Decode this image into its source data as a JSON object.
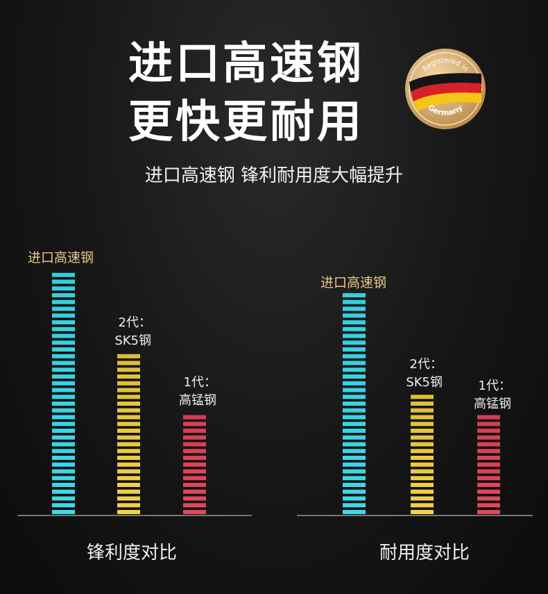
{
  "header": {
    "title_line1": "进口高速钢",
    "title_line2": "更快更耐用",
    "subtitle": "进口高速钢 锋利耐用度大幅提升",
    "badge": {
      "text_top": "Registered in",
      "text_bottom": "Germany",
      "flag_colors": [
        "#1a1a1a",
        "#d8202a",
        "#f5c518"
      ]
    }
  },
  "chart_data": [
    {
      "type": "bar",
      "title": "锋利度对比",
      "categories": [
        "进口高速钢",
        "2代：SK5钢",
        "1代：高锰钢"
      ],
      "label_lines": [
        [
          "进口高速钢"
        ],
        [
          "2代：",
          "SK5钢"
        ],
        [
          "1代：",
          "高锰钢"
        ]
      ],
      "values": [
        36,
        24,
        15
      ],
      "colors": [
        "#3fd8e8",
        "#f3d24a",
        "#e0485e"
      ],
      "ylim": [
        0,
        36
      ],
      "grid": false
    },
    {
      "type": "bar",
      "title": "耐用度对比",
      "categories": [
        "进口高速钢",
        "2代：SK5钢",
        "1代：高锰钢"
      ],
      "label_lines": [
        [
          "进口高速钢"
        ],
        [
          "2代：",
          "SK5钢"
        ],
        [
          "1代：",
          "高锰钢"
        ]
      ],
      "values": [
        33,
        18,
        15
      ],
      "colors": [
        "#3fd8e8",
        "#f3d24a",
        "#e0485e"
      ],
      "ylim": [
        0,
        36
      ],
      "grid": false
    }
  ]
}
